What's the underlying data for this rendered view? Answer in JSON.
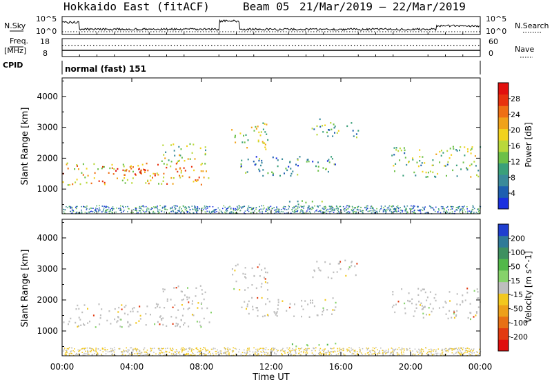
{
  "header": {
    "station": "Hokkaido East (fitACF)",
    "beam": "Beam 05",
    "dates": "21/Mar/2019 – 22/Mar/2019"
  },
  "top_panels": {
    "nsky_label": "N.Sky",
    "nsky_ticks": [
      "10^5",
      "10^0"
    ],
    "nsky_right_ticks": [
      "10^5",
      "10^0"
    ],
    "nsearch_label": "N.Search",
    "freq_label": "Freq.",
    "freq_unit": "[MHz]",
    "freq_ticks": [
      "18",
      "8"
    ],
    "nave_label": "Nave",
    "nave_ticks": [
      "60",
      "0"
    ],
    "cpid_label": "CPID",
    "cpid_value": "normal (fast) 151"
  },
  "chart_data": [
    {
      "type": "heatmap",
      "ylabel": "Slant Range [km]",
      "yticks": [
        1000,
        2000,
        3000,
        4000
      ],
      "ylim": [
        200,
        4600
      ],
      "xlim": [
        0,
        24
      ],
      "colorbar": {
        "label": "Power [dB]",
        "ticks": [
          "4",
          "8",
          "12",
          "16",
          "20",
          "24",
          "28"
        ],
        "colors": [
          "#1a30e0",
          "#1e5fb0",
          "#3a8a9a",
          "#3aa07a",
          "#6cc048",
          "#b9d83a",
          "#f2d21e",
          "#f0a21a",
          "#ee6f14",
          "#e8320e",
          "#e2100e"
        ]
      },
      "regions": [
        {
          "t0": 0.0,
          "t1": 8.6,
          "r0": 1150,
          "r1": 1900,
          "level": 0.7
        },
        {
          "t0": 3.0,
          "t1": 7.0,
          "r0": 1450,
          "r1": 1750,
          "level": 0.95
        },
        {
          "t0": 5.5,
          "t1": 8.3,
          "r0": 1900,
          "r1": 2500,
          "level": 0.5
        },
        {
          "t0": 9.7,
          "t1": 11.8,
          "r0": 2300,
          "r1": 3200,
          "level": 0.55
        },
        {
          "t0": 10.2,
          "t1": 15.8,
          "r0": 1450,
          "r1": 2100,
          "level": 0.3
        },
        {
          "t0": 14.3,
          "t1": 17.0,
          "r0": 2700,
          "r1": 3300,
          "level": 0.35
        },
        {
          "t0": 18.9,
          "t1": 24.0,
          "r0": 1400,
          "r1": 2400,
          "level": 0.45
        },
        {
          "t0": 12.8,
          "t1": 15.8,
          "r0": 520,
          "r1": 640,
          "level": 0.4
        }
      ]
    },
    {
      "type": "heatmap",
      "ylabel": "Slant Range [km]",
      "yticks": [
        1000,
        2000,
        3000,
        4000
      ],
      "ylim": [
        200,
        4600
      ],
      "xlim": [
        0,
        24
      ],
      "xticks": [
        "00:00",
        "04:00",
        "08:00",
        "12:00",
        "16:00",
        "20:00",
        "00:00"
      ],
      "xlabel": "Time UT",
      "colorbar": {
        "label": "Velocity [m s^-1]",
        "ticks": [
          "200",
          "100",
          "50",
          "15",
          "-15",
          "-50",
          "-100",
          "-200"
        ],
        "colors": [
          "#1f3fd0",
          "#2f7a98",
          "#3e9060",
          "#52b84a",
          "#86d26a",
          "#bebebe",
          "#f2c81e",
          "#eda01a",
          "#e87014",
          "#e23a10",
          "#e00e0e"
        ]
      },
      "regions": [
        {
          "t0": 0.0,
          "t1": 8.6,
          "r0": 1150,
          "r1": 1900,
          "level": 0.0
        },
        {
          "t0": 5.5,
          "t1": 8.3,
          "r0": 1900,
          "r1": 2500,
          "level": 0.0
        },
        {
          "t0": 9.7,
          "t1": 11.8,
          "r0": 2300,
          "r1": 3200,
          "level": 0.0
        },
        {
          "t0": 10.2,
          "t1": 15.8,
          "r0": 1450,
          "r1": 2100,
          "level": 0.0
        },
        {
          "t0": 14.3,
          "t1": 17.0,
          "r0": 2700,
          "r1": 3300,
          "level": 0.0
        },
        {
          "t0": 18.9,
          "t1": 24.0,
          "r0": 1400,
          "r1": 2400,
          "level": 0.0
        },
        {
          "t0": 12.8,
          "t1": 15.8,
          "r0": 520,
          "r1": 640,
          "level": 60
        }
      ]
    }
  ]
}
